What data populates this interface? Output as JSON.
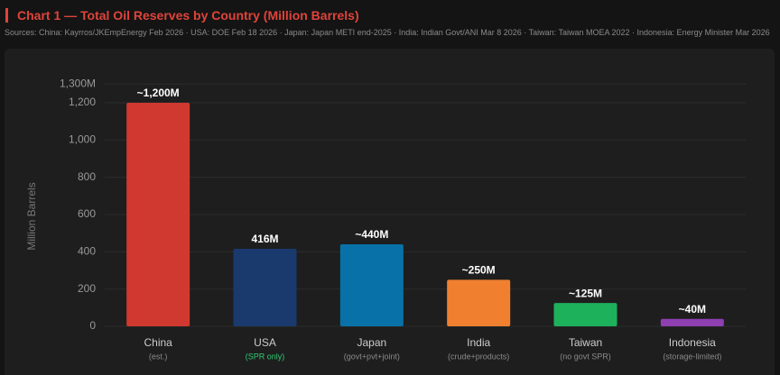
{
  "chart_data": {
    "type": "bar",
    "title": "Chart 1 — Total Oil Reserves by Country (Million Barrels)",
    "subtitle": "Sources: China: Kayrros/JKEmpEnergy Feb 2026 · USA: DOE Feb 18 2026 · Japan: Japan METI end-2025 · India: Indian Govt/ANI Mar 8 2026 · Taiwan: Taiwan MOEA 2022 · Indonesia: Energy Minister Mar 2026",
    "y_label": "Million Barrels",
    "categories": [
      "China",
      "USA",
      "Japan",
      "India",
      "Taiwan",
      "Indonesia"
    ],
    "sublabels": [
      "(est.)",
      "(SPR only)",
      "(govt+pvt+joint)",
      "(crude+products)",
      "(no govt SPR)",
      "(storage-limited)"
    ],
    "sublabel_colors": [
      "#8a8a8a",
      "#2ecc71",
      "#8a8a8a",
      "#8a8a8a",
      "#8a8a8a",
      "#8a8a8a"
    ],
    "values": [
      1200,
      416,
      440,
      250,
      125,
      40
    ],
    "value_labels": [
      "~1,200M",
      "416M",
      "~440M",
      "~250M",
      "~125M",
      "~40M"
    ],
    "colors": [
      "#d0392f",
      "#1a3a6e",
      "#0872a8",
      "#f08030",
      "#1db15b",
      "#8e3fb0"
    ],
    "ylim": [
      0,
      1300
    ],
    "yticks": [
      0,
      200,
      400,
      600,
      800,
      {
        "value": 1000,
        "label": "1,000"
      },
      {
        "value": 1200,
        "label": "1,200"
      },
      {
        "value": 1300,
        "label": "1,300M"
      }
    ],
    "grid": true
  }
}
